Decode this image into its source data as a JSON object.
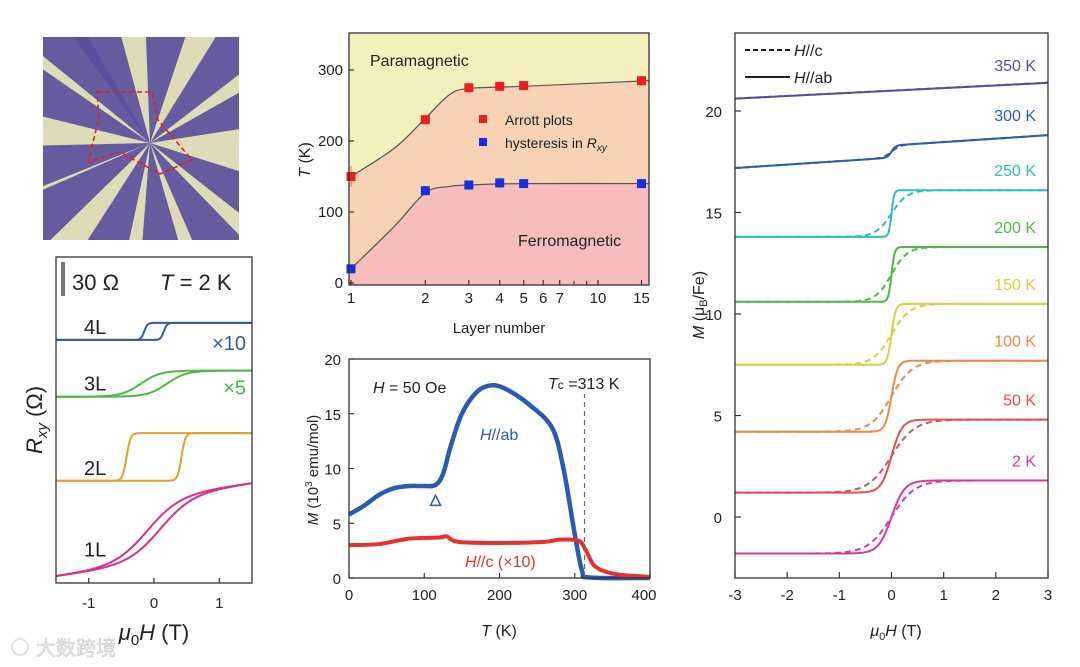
{
  "colors": {
    "red": "#e03030",
    "blue": "#2058c8",
    "para": "#f4f0be",
    "mid": "#f7d2b4",
    "ferro": "#f7bcbc"
  },
  "photo": {
    "background": "#dedcb6",
    "flake": "#5a4c9c",
    "outline": "#e02020"
  },
  "watermark": {
    "text": "大数跨境"
  },
  "chart_data": [
    {
      "id": "rxy",
      "type": "line",
      "title": "",
      "scale_bar": "30 Ω",
      "temperature": {
        "var": "T",
        "rest": " = 2 K"
      },
      "ylabel": {
        "var": "R",
        "sub": "xy",
        "rest": " (Ω)"
      },
      "xlabel": {
        "var": "μ",
        "sub": "0",
        "var2": "H",
        "rest": " (T)"
      },
      "xlim": [
        -1.5,
        1.5
      ],
      "ylim_ohm": [
        0,
        287
      ],
      "xticks": [
        "-1",
        "0",
        "1"
      ],
      "xtick_values": [
        -1,
        0,
        1
      ],
      "series": [
        {
          "name": "4L",
          "color": "#2f5ba8",
          "low": 214,
          "high": 229,
          "hc": 0.15,
          "w": 0.05,
          "slope": 0,
          "multiplier": "×10"
        },
        {
          "name": "3L",
          "color": "#4cb848",
          "low": 164,
          "high": 187,
          "hc": 0.2,
          "w": 0.3,
          "slope": 0,
          "multiplier": "×5"
        },
        {
          "name": "2L",
          "color": "#e0a030",
          "low": 90,
          "high": 132,
          "hc": 0.42,
          "w": 0.06,
          "slope": 0,
          "multiplier": ""
        },
        {
          "name": "1L",
          "color": "#d8308a",
          "low": 18,
          "high": 76,
          "hc": 0.1,
          "w": 0.5,
          "slope": 8,
          "multiplier": ""
        }
      ]
    },
    {
      "id": "phase",
      "type": "scatter",
      "xscale": "log",
      "xlabel": "Layer number",
      "ylabel": {
        "var": "T",
        "rest": " (K)"
      },
      "xlim": [
        1,
        16
      ],
      "ylim": [
        0,
        350
      ],
      "xticks": [
        "1",
        "2",
        "3",
        "4",
        "5",
        "6",
        "7",
        "10",
        "15"
      ],
      "xtick_values": [
        1,
        2,
        3,
        4,
        5,
        6,
        7,
        10,
        15
      ],
      "yticks": [
        "0",
        "100",
        "200",
        "300"
      ],
      "ytick_values": [
        0,
        100,
        200,
        300
      ],
      "regions": {
        "top": "Paramagnetic",
        "bottom": "Ferromagnetic"
      },
      "legend": {
        "arrott": "Arrott plots",
        "hyst": "hysteresis in ",
        "hyst_var": "R",
        "hyst_sub": "xy"
      },
      "series": [
        {
          "name": "Arrott plots",
          "color": "#e82020",
          "x": [
            1,
            2,
            3,
            4,
            5,
            15
          ],
          "y": [
            150,
            230,
            275,
            277,
            278,
            285
          ],
          "err": [
            15,
            7,
            7,
            7,
            7,
            7
          ]
        },
        {
          "name": "hysteresis in Rxy",
          "color": "#1a2ee0",
          "x": [
            1,
            2,
            3,
            4,
            5,
            15
          ],
          "y": [
            20,
            130,
            138,
            141,
            140,
            140
          ],
          "err": [
            4,
            6,
            6,
            7,
            6,
            7
          ]
        }
      ],
      "boundary_upper": {
        "x": [
          1,
          1.5,
          2,
          2.5,
          3,
          5,
          16
        ],
        "y": [
          150,
          190,
          232,
          265,
          274,
          277,
          285
        ]
      },
      "boundary_lower": {
        "x": [
          1,
          1.5,
          2,
          2.5,
          3,
          5,
          16
        ],
        "y": [
          20,
          80,
          127,
          136,
          138,
          140,
          140
        ]
      }
    },
    {
      "id": "mt",
      "type": "line",
      "xlabel": {
        "var": "T",
        "rest": " (K)"
      },
      "ylabel": {
        "var": "M",
        "rest": " (10",
        "sup": "3",
        "rest2": " emu/mol)"
      },
      "xlim": [
        0,
        400
      ],
      "ylim": [
        0,
        20
      ],
      "xticks": [
        "0",
        "100",
        "200",
        "300",
        "400"
      ],
      "xtick_values": [
        0,
        100,
        200,
        300,
        400
      ],
      "yticks": [
        "0",
        "5",
        "10",
        "15",
        "20"
      ],
      "ytick_values": [
        0,
        5,
        10,
        15,
        20
      ],
      "field_note": {
        "var": "H",
        "rest": " = 50 Oe"
      },
      "tc_note": {
        "var": "T",
        "sub": "c",
        "rest": " =313 K"
      },
      "tc": 313,
      "marker": {
        "symbol": "triangle",
        "x": 115,
        "y": 7
      },
      "series": [
        {
          "name": "H//ab",
          "var": "H",
          "rest": "//ab",
          "color": "#2b5bb0",
          "x": [
            0,
            20,
            40,
            60,
            80,
            100,
            115,
            125,
            135,
            150,
            170,
            190,
            210,
            240,
            270,
            285,
            300,
            310,
            320,
            400
          ],
          "y": [
            5.8,
            6.6,
            7.6,
            8.2,
            8.4,
            8.4,
            8.5,
            9.5,
            12,
            15,
            17,
            17.6,
            17.2,
            15.8,
            13.7,
            10,
            4,
            0.6,
            0.05,
            0
          ]
        },
        {
          "name": "H//c (×10)",
          "var": "H",
          "rest": "//c (×10)",
          "color": "#e83030",
          "x": [
            0,
            40,
            80,
            120,
            130,
            145,
            200,
            260,
            280,
            305,
            315,
            325,
            340,
            360,
            400
          ],
          "y": [
            3,
            3.1,
            3.6,
            3.7,
            3.8,
            3.3,
            3.2,
            3.3,
            3.5,
            3.4,
            2.5,
            1.2,
            0.6,
            0.3,
            0.1
          ]
        }
      ]
    },
    {
      "id": "mh",
      "type": "line",
      "xlabel": {
        "var": "μ",
        "sub": "0",
        "var2": "H",
        "rest": " (T)"
      },
      "ylabel": {
        "var": "M",
        "rest": " (μ",
        "sub": "B",
        "rest2": "/Fe)"
      },
      "xlim": [
        -3,
        3
      ],
      "ylim": [
        -3,
        23.8
      ],
      "xticks": [
        "-3",
        "-2",
        "-1",
        "0",
        "1",
        "2",
        "3"
      ],
      "xtick_values": [
        -3,
        -2,
        -1,
        0,
        1,
        2,
        3
      ],
      "yticks": [
        "0",
        "5",
        "10",
        "15",
        "20"
      ],
      "ytick_values": [
        0,
        5,
        10,
        15,
        20
      ],
      "legend": [
        {
          "style": "dashed",
          "var": "H",
          "rest": "//c"
        },
        {
          "style": "solid",
          "var": "H",
          "rest": "//ab"
        }
      ],
      "series": [
        {
          "name": "350 K",
          "color": "#5b4ba0",
          "mid": 21.0,
          "step": 0,
          "slope": 0.13,
          "w_solid": 0.1,
          "w_dashed": 0.1
        },
        {
          "name": "300 K",
          "color": "#2f5ba8",
          "mid": 18.0,
          "step": 0.6,
          "slope": 0.17,
          "w_solid": 0.08,
          "w_dashed": 0.15
        },
        {
          "name": "250 K",
          "color": "#2bbcc0",
          "mid": 14.95,
          "step": 2.3,
          "slope": 0,
          "w_solid": 0.05,
          "w_dashed": 0.3
        },
        {
          "name": "200 K",
          "color": "#4db848",
          "mid": 11.95,
          "step": 2.7,
          "slope": 0,
          "w_solid": 0.06,
          "w_dashed": 0.3
        },
        {
          "name": "150 K",
          "color": "#d8d040",
          "mid": 9.0,
          "step": 3.0,
          "slope": 0,
          "w_solid": 0.08,
          "w_dashed": 0.35
        },
        {
          "name": "100 K",
          "color": "#e88a4a",
          "mid": 5.95,
          "step": 3.5,
          "slope": 0,
          "w_solid": 0.12,
          "w_dashed": 0.4
        },
        {
          "name": "50 K",
          "color": "#e05050",
          "mid": 3.0,
          "step": 3.6,
          "slope": 0,
          "w_solid": 0.2,
          "w_dashed": 0.45
        },
        {
          "name": "2 K",
          "color": "#d83a9a",
          "mid": 0.0,
          "step": 3.6,
          "slope": 0,
          "w_solid": 0.25,
          "w_dashed": 0.45
        }
      ]
    }
  ]
}
